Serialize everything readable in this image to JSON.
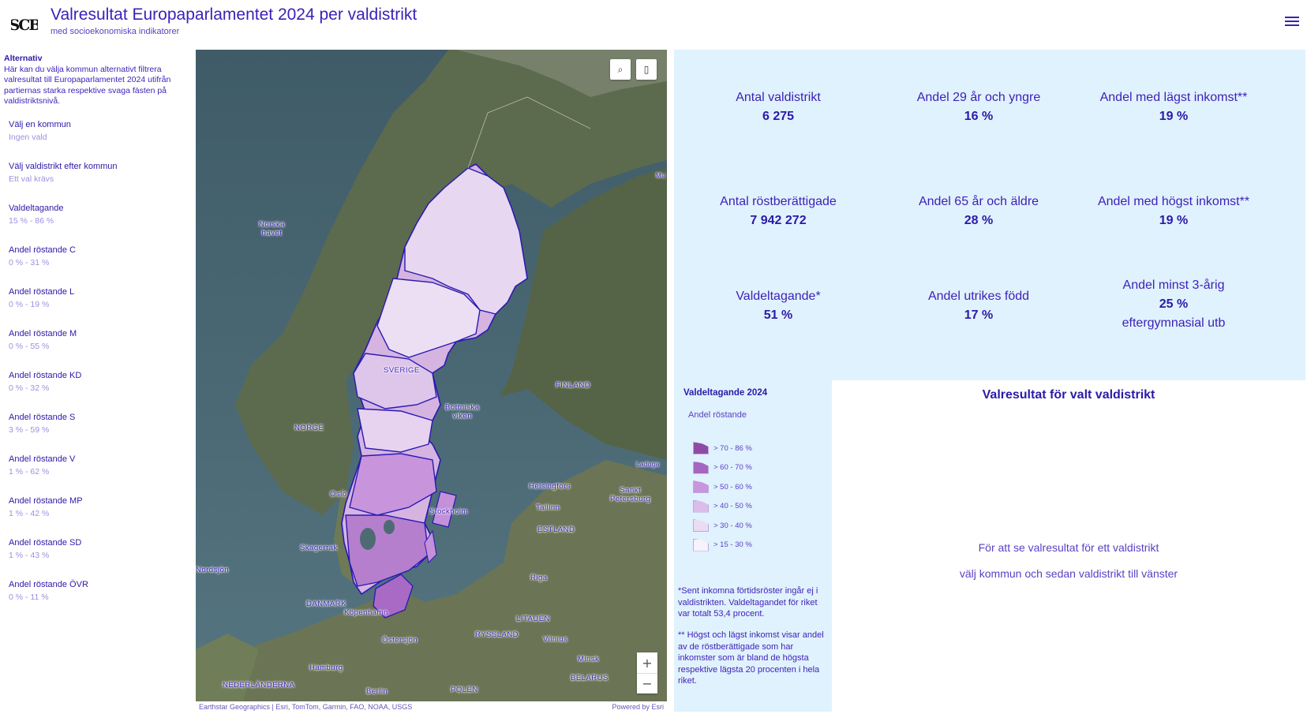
{
  "header": {
    "title": "Valresultat Europaparlamentet 2024 per valdistrikt",
    "subtitle": "med socioekonomiska indikatorer",
    "logo_text": "SCB"
  },
  "sidebar": {
    "intro_heading": "Alternativ",
    "intro_text": "Här kan du välja kommun alternativt filtrera valresultat till Europaparlamentet 2024 utifrån partiernas starka respektive svaga fästen på valdistriktsnivå.",
    "filters": [
      {
        "label": "Välj en kommun",
        "value": "Ingen vald"
      },
      {
        "label": "Välj valdistrikt efter kommun",
        "value": "Ett val krävs"
      },
      {
        "label": "Valdeltagande",
        "value": "15 % - 86 %"
      },
      {
        "label": "Andel röstande C",
        "value": "0 % - 31 %"
      },
      {
        "label": "Andel röstande L",
        "value": "0 % - 19 %"
      },
      {
        "label": "Andel röstande M",
        "value": "0 % - 55 %"
      },
      {
        "label": "Andel röstande KD",
        "value": "0 % - 32 %"
      },
      {
        "label": "Andel röstande S",
        "value": "3 % - 59 %"
      },
      {
        "label": "Andel röstande V",
        "value": "1 % - 62 %"
      },
      {
        "label": "Andel röstande MP",
        "value": "1 % - 42 %"
      },
      {
        "label": "Andel röstande SD",
        "value": "1 % - 43 %"
      },
      {
        "label": "Andel röstande ÖVR",
        "value": "0 % - 11 %"
      }
    ]
  },
  "map": {
    "labels": {
      "norska_havet_1": "Norska",
      "norska_havet_2": "havet",
      "sverige": "SVERIGE",
      "norge": "NORGE",
      "finland": "FINLAND",
      "bottniska_1": "Bottniska",
      "bottniska_2": "viken",
      "oslo": "Oslo",
      "helsingfors": "Helsingfors",
      "sankt_1": "Sankt",
      "sankt_2": "Petersburg",
      "tallinn": "Tallinn",
      "stockholm": "Stockholm",
      "estland": "ESTLAND",
      "skagerrak": "Skagerrak",
      "nordsjon": "Nordsjön",
      "riga": "Riga",
      "danmark": "DANMARK",
      "kopenhamn": "Köpenhamn",
      "litauen": "LITAUEN",
      "ryssland": "RYSSLAND",
      "vilnius": "Vilnius",
      "ostersjon": "Östersjön",
      "minsk": "Minsk",
      "hamburg": "Hamburg",
      "belarus": "BELARUS",
      "nederlanderna": "NEDERLÄNDERNA",
      "berlin": "Berlin",
      "polen": "POLEN",
      "ladoga": "Ladoga",
      "mu": "Mu"
    },
    "zoom_in": "+",
    "zoom_out": "−",
    "search_icon": "⌕",
    "bookmark_icon": "▯",
    "attribution": "Earthstar Geographics | Esri, TomTom, Garmin, FAO, NOAA, USGS",
    "powered_by": "Powered by Esri"
  },
  "stats": [
    {
      "name": "Antal valdistrikt",
      "value": "6 275"
    },
    {
      "name": "Andel 29 år och yngre",
      "value": "16 %"
    },
    {
      "name": "Andel med lägst inkomst**",
      "value": "19 %"
    },
    {
      "name": "Antal röstberättigade",
      "value": "7 942 272"
    },
    {
      "name": "Andel 65 år och äldre",
      "value": "28 %"
    },
    {
      "name": "Andel med högst inkomst**",
      "value": "19 %"
    },
    {
      "name": "Valdeltagande*",
      "value": "51 %"
    },
    {
      "name": "Andel utrikes född",
      "value": "17 %"
    },
    {
      "name": "Andel minst 3-årig",
      "value": "25 %",
      "extra": "eftergymnasial utb"
    }
  ],
  "legend": {
    "title": "Valdeltagande 2024",
    "subtitle": "Andel röstande",
    "items": [
      {
        "label": "> 70 - 86 %",
        "color": "#8e4ba6"
      },
      {
        "label": "> 60 - 70 %",
        "color": "#a666bf"
      },
      {
        "label": "> 50 - 60 %",
        "color": "#c995dc"
      },
      {
        "label": "> 40 - 50 %",
        "color": "#dcbcea"
      },
      {
        "label": "> 30 - 40 %",
        "color": "#ebdcf3"
      },
      {
        "label": "> 15 - 30 %",
        "color": "#f7f2fb"
      }
    ],
    "note1": "*Sent inkomna förtidsröster ingår ej i valdistrikten. Valdeltagandet för riket var totalt 53,4 procent.",
    "note2": "** Högst och lägst inkomst visar andel av de röstberättigade som har inkomster som är bland de högsta respektive lägsta 20 procenten i hela riket."
  },
  "result": {
    "title": "Valresultat för valt valdistrikt",
    "msg1": "För att se valresultat för ett valdistrikt",
    "msg2": "välj kommun och sedan valdistrikt till vänster"
  }
}
